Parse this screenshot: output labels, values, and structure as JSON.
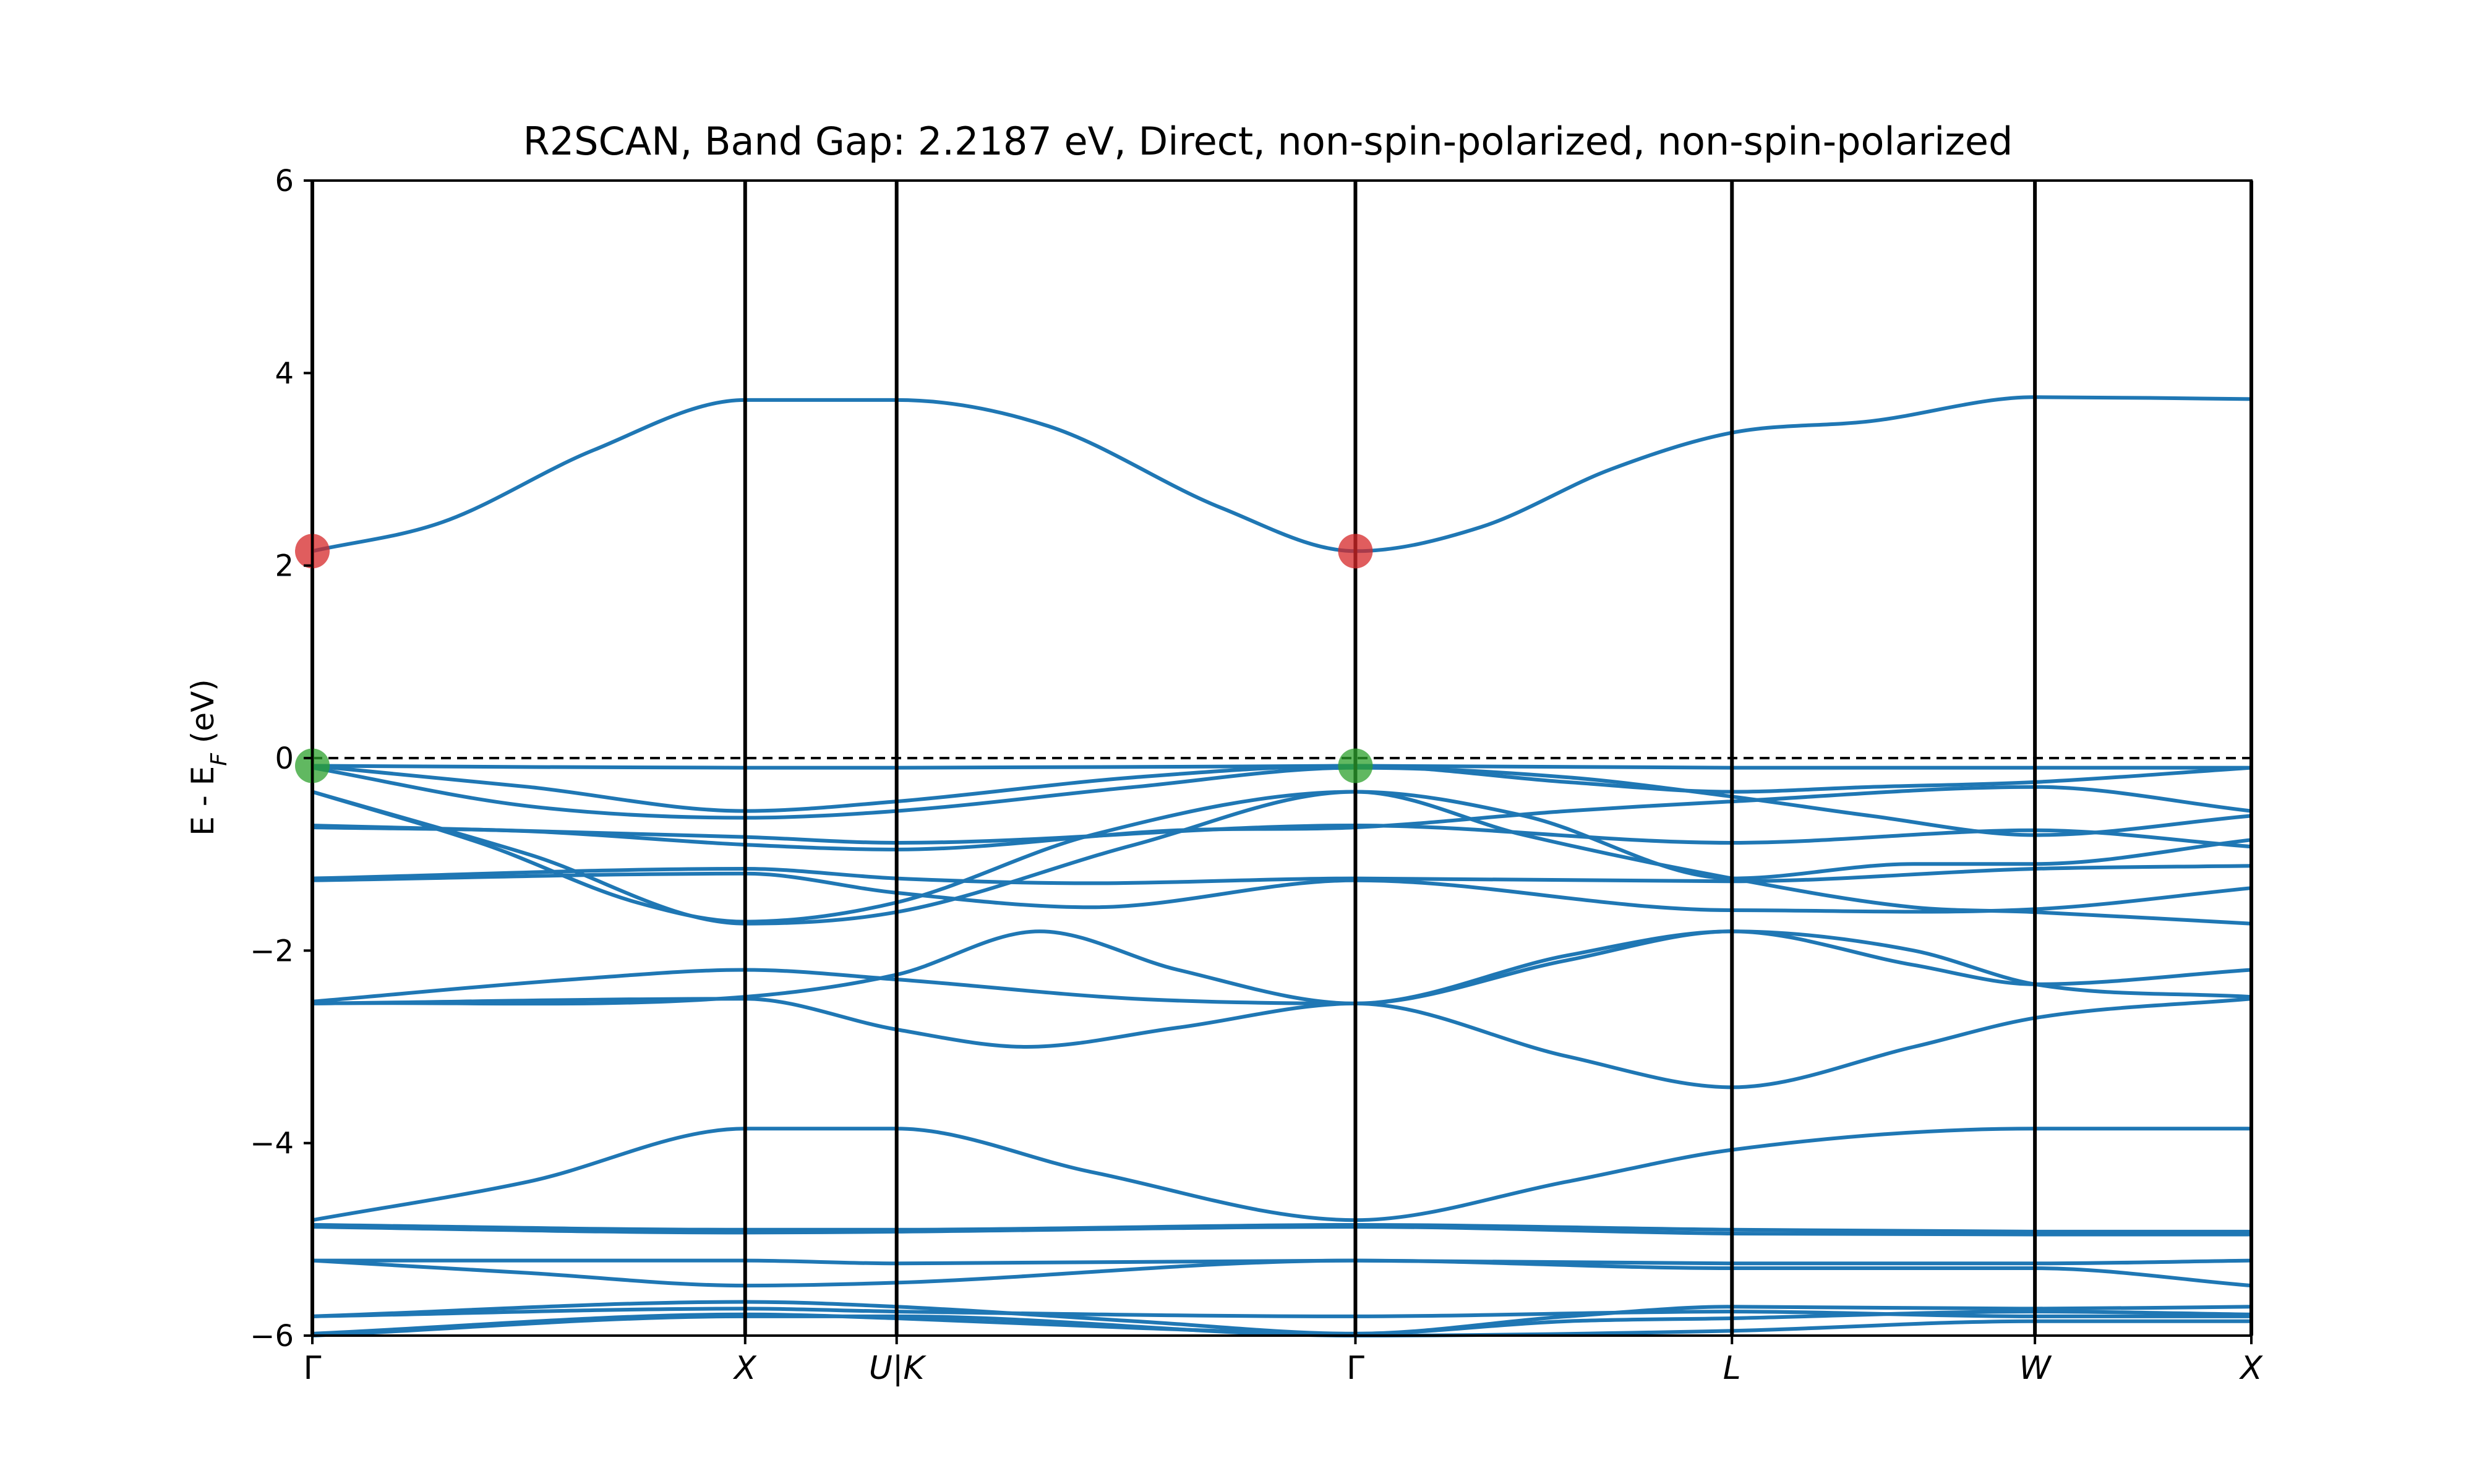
{
  "chart_data": {
    "type": "line",
    "title": "R2SCAN, Band Gap: 2.2187 eV, Direct, non-spin-polarized, non-spin-polarized",
    "ylabel_main": "E - E",
    "ylabel_sub": "F",
    "ylabel_tail": " (eV)",
    "ylim": [
      -6,
      6
    ],
    "xlim": [
      0,
      6
    ],
    "y_ticks": [
      -6,
      -4,
      -2,
      0,
      2,
      4,
      6
    ],
    "y_tick_labels": [
      "−6",
      "−4",
      "−2",
      "0",
      "2",
      "4",
      "6"
    ],
    "kpoints": [
      {
        "label": "Γ",
        "x": 0,
        "italic": false
      },
      {
        "label": "X",
        "x": 1,
        "italic": true
      },
      {
        "label": "U|K",
        "x": 1.35,
        "italic": true
      },
      {
        "label": "Γ",
        "x": 2.41,
        "italic": false
      },
      {
        "label": "L",
        "x": 3.28,
        "italic": true
      },
      {
        "label": "W",
        "x": 3.98,
        "italic": true
      },
      {
        "label": "X",
        "x": 4.48,
        "italic": true
      }
    ],
    "fermi_level": 0,
    "cbm": {
      "points": [
        [
          0,
          2.15
        ],
        [
          2.41,
          2.15
        ]
      ],
      "color": "#d62728"
    },
    "vbm": {
      "points": [
        [
          0,
          -0.08
        ],
        [
          2.41,
          -0.08
        ]
      ],
      "color": "#2ca02c"
    },
    "series_color": "#1f77b4",
    "series": [
      {
        "values": [
          [
            0,
            2.15
          ],
          [
            0.3,
            2.45
          ],
          [
            0.65,
            3.2
          ],
          [
            1,
            3.72
          ],
          [
            1.35,
            3.72
          ],
          [
            1.7,
            3.45
          ],
          [
            2.1,
            2.6
          ],
          [
            2.41,
            2.15
          ],
          [
            2.7,
            2.4
          ],
          [
            3.0,
            3.0
          ],
          [
            3.28,
            3.38
          ],
          [
            3.6,
            3.5
          ],
          [
            3.98,
            3.75
          ],
          [
            4.48,
            3.73
          ]
        ]
      },
      {
        "values": [
          [
            0,
            -0.08
          ],
          [
            1,
            -0.1
          ],
          [
            1.35,
            -0.1
          ],
          [
            2.0,
            -0.09
          ],
          [
            2.41,
            -0.08
          ],
          [
            3.28,
            -0.1
          ],
          [
            3.98,
            -0.1
          ],
          [
            4.48,
            -0.1
          ]
        ]
      },
      {
        "values": [
          [
            0,
            -0.08
          ],
          [
            0.5,
            -0.3
          ],
          [
            1,
            -0.55
          ],
          [
            1.35,
            -0.45
          ],
          [
            1.9,
            -0.2
          ],
          [
            2.41,
            -0.08
          ],
          [
            2.9,
            -0.25
          ],
          [
            3.28,
            -0.35
          ],
          [
            3.6,
            -0.3
          ],
          [
            3.98,
            -0.25
          ],
          [
            4.48,
            -0.1
          ]
        ]
      },
      {
        "values": [
          [
            0,
            -0.1
          ],
          [
            0.5,
            -0.5
          ],
          [
            1,
            -0.62
          ],
          [
            1.35,
            -0.55
          ],
          [
            1.9,
            -0.3
          ],
          [
            2.41,
            -0.1
          ],
          [
            2.9,
            -0.2
          ],
          [
            3.28,
            -0.4
          ],
          [
            3.6,
            -0.6
          ],
          [
            3.98,
            -0.8
          ],
          [
            4.48,
            -0.6
          ]
        ]
      },
      {
        "values": [
          [
            0,
            -0.35
          ],
          [
            0.4,
            -0.9
          ],
          [
            0.75,
            -1.5
          ],
          [
            1,
            -1.7
          ],
          [
            1.35,
            -1.5
          ],
          [
            1.8,
            -0.8
          ],
          [
            2.41,
            -0.35
          ],
          [
            2.8,
            -0.8
          ],
          [
            3.28,
            -1.25
          ],
          [
            3.7,
            -1.55
          ],
          [
            3.98,
            -1.6
          ],
          [
            4.48,
            -1.72
          ]
        ]
      },
      {
        "values": [
          [
            0,
            -0.35
          ],
          [
            0.5,
            -1.0
          ],
          [
            1,
            -1.72
          ],
          [
            1.35,
            -1.6
          ],
          [
            1.9,
            -0.9
          ],
          [
            2.41,
            -0.35
          ],
          [
            2.8,
            -0.6
          ],
          [
            3.28,
            -1.25
          ],
          [
            3.7,
            -1.1
          ],
          [
            3.98,
            -1.1
          ],
          [
            4.48,
            -0.85
          ]
        ]
      },
      {
        "values": [
          [
            0,
            -0.7
          ],
          [
            1,
            -0.82
          ],
          [
            1.35,
            -0.88
          ],
          [
            2.41,
            -0.7
          ],
          [
            3.28,
            -0.88
          ],
          [
            3.98,
            -0.75
          ],
          [
            4.48,
            -0.92
          ]
        ]
      },
      {
        "values": [
          [
            0,
            -0.72
          ],
          [
            0.5,
            -0.76
          ],
          [
            1,
            -0.9
          ],
          [
            1.35,
            -0.95
          ],
          [
            2.0,
            -0.75
          ],
          [
            2.41,
            -0.72
          ],
          [
            2.9,
            -0.55
          ],
          [
            3.28,
            -0.45
          ],
          [
            3.98,
            -0.3
          ],
          [
            4.48,
            -0.55
          ]
        ]
      },
      {
        "values": [
          [
            0,
            -1.25
          ],
          [
            1,
            -1.15
          ],
          [
            1.35,
            -1.25
          ],
          [
            1.8,
            -1.3
          ],
          [
            2.41,
            -1.25
          ],
          [
            3.28,
            -1.28
          ],
          [
            3.98,
            -1.15
          ],
          [
            4.48,
            -1.12
          ]
        ]
      },
      {
        "values": [
          [
            0,
            -1.27
          ],
          [
            1,
            -1.2
          ],
          [
            1.35,
            -1.4
          ],
          [
            1.8,
            -1.55
          ],
          [
            2.41,
            -1.27
          ],
          [
            3.28,
            -1.58
          ],
          [
            3.98,
            -1.57
          ],
          [
            4.48,
            -1.35
          ]
        ]
      },
      {
        "values": [
          [
            0,
            -2.53
          ],
          [
            0.6,
            -2.3
          ],
          [
            1,
            -2.2
          ],
          [
            1.35,
            -2.3
          ],
          [
            1.9,
            -2.5
          ],
          [
            2.41,
            -2.55
          ],
          [
            2.9,
            -2.05
          ],
          [
            3.28,
            -1.8
          ],
          [
            3.7,
            -2.15
          ],
          [
            3.98,
            -2.35
          ],
          [
            4.48,
            -2.2
          ]
        ]
      },
      {
        "values": [
          [
            0,
            -2.55
          ],
          [
            1,
            -2.48
          ],
          [
            1.35,
            -2.25
          ],
          [
            1.68,
            -1.8
          ],
          [
            2.0,
            -2.2
          ],
          [
            2.41,
            -2.55
          ],
          [
            2.9,
            -2.1
          ],
          [
            3.28,
            -1.8
          ],
          [
            3.7,
            -2.0
          ],
          [
            3.98,
            -2.35
          ],
          [
            4.48,
            -2.48
          ]
        ]
      },
      {
        "values": [
          [
            0,
            -2.55
          ],
          [
            1,
            -2.5
          ],
          [
            1.35,
            -2.82
          ],
          [
            1.65,
            -3.0
          ],
          [
            2.0,
            -2.8
          ],
          [
            2.41,
            -2.55
          ],
          [
            2.9,
            -3.1
          ],
          [
            3.28,
            -3.42
          ],
          [
            3.7,
            -3.0
          ],
          [
            3.98,
            -2.7
          ],
          [
            4.48,
            -2.5
          ]
        ]
      },
      {
        "values": [
          [
            0,
            -4.8
          ],
          [
            0.5,
            -4.4
          ],
          [
            1,
            -3.85
          ],
          [
            1.35,
            -3.85
          ],
          [
            1.8,
            -4.3
          ],
          [
            2.41,
            -4.8
          ],
          [
            2.9,
            -4.4
          ],
          [
            3.28,
            -4.07
          ],
          [
            3.98,
            -3.85
          ],
          [
            4.48,
            -3.85
          ]
        ]
      },
      {
        "values": [
          [
            0,
            -4.85
          ],
          [
            1,
            -4.9
          ],
          [
            1.35,
            -4.9
          ],
          [
            2.41,
            -4.85
          ],
          [
            3.28,
            -4.9
          ],
          [
            3.98,
            -4.92
          ],
          [
            4.48,
            -4.92
          ]
        ]
      },
      {
        "values": [
          [
            0,
            -4.87
          ],
          [
            1,
            -4.93
          ],
          [
            1.35,
            -4.92
          ],
          [
            2.41,
            -4.87
          ],
          [
            3.28,
            -4.94
          ],
          [
            3.98,
            -4.95
          ],
          [
            4.48,
            -4.95
          ]
        ]
      },
      {
        "values": [
          [
            0,
            -5.22
          ],
          [
            0.5,
            -5.35
          ],
          [
            1,
            -5.48
          ],
          [
            1.35,
            -5.45
          ],
          [
            2.41,
            -5.22
          ],
          [
            3.28,
            -5.3
          ],
          [
            3.98,
            -5.3
          ],
          [
            4.48,
            -5.48
          ]
        ]
      },
      {
        "values": [
          [
            0,
            -5.22
          ],
          [
            1,
            -5.22
          ],
          [
            1.35,
            -5.25
          ],
          [
            2.41,
            -5.22
          ],
          [
            3.28,
            -5.25
          ],
          [
            3.98,
            -5.25
          ],
          [
            4.48,
            -5.22
          ]
        ]
      },
      {
        "values": [
          [
            0,
            -5.8
          ],
          [
            1,
            -5.65
          ],
          [
            1.35,
            -5.7
          ],
          [
            1.9,
            -5.85
          ],
          [
            2.41,
            -5.98
          ],
          [
            2.9,
            -5.8
          ],
          [
            3.28,
            -5.7
          ],
          [
            3.98,
            -5.72
          ],
          [
            4.48,
            -5.7
          ]
        ]
      },
      {
        "values": [
          [
            0,
            -5.8
          ],
          [
            1,
            -5.72
          ],
          [
            1.35,
            -5.75
          ],
          [
            2.41,
            -5.8
          ],
          [
            3.28,
            -5.75
          ],
          [
            3.98,
            -5.8
          ],
          [
            4.48,
            -5.8
          ]
        ]
      },
      {
        "values": [
          [
            0,
            -5.98
          ],
          [
            1,
            -5.78
          ],
          [
            1.35,
            -5.82
          ],
          [
            1.9,
            -5.92
          ],
          [
            2.41,
            -5.98
          ],
          [
            2.9,
            -5.85
          ],
          [
            3.28,
            -5.82
          ],
          [
            3.98,
            -5.75
          ],
          [
            4.48,
            -5.78
          ]
        ]
      },
      {
        "values": [
          [
            0,
            -6.0
          ],
          [
            1,
            -5.8
          ],
          [
            1.35,
            -5.8
          ],
          [
            2.41,
            -6.0
          ],
          [
            3.28,
            -5.95
          ],
          [
            3.98,
            -5.85
          ],
          [
            4.48,
            -5.85
          ]
        ]
      }
    ],
    "grid": false,
    "legend": "none"
  }
}
